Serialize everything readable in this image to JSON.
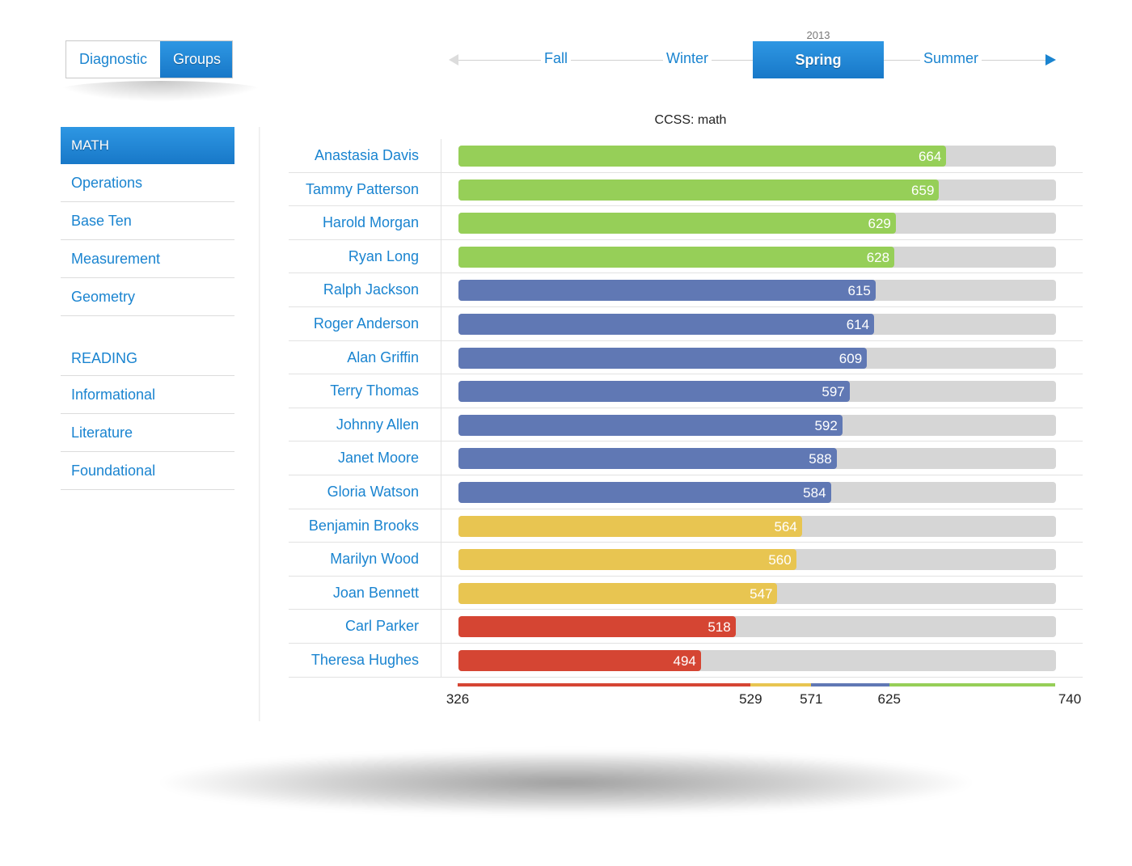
{
  "toggle": {
    "diagnostic_label": "Diagnostic",
    "groups_label": "Groups",
    "active": "Groups"
  },
  "seasons": {
    "year": "2013",
    "items": [
      "Fall",
      "Winter",
      "Spring",
      "Summer"
    ],
    "active": "Spring",
    "prev_icon": "triangle-left-icon",
    "next_icon": "triangle-right-icon"
  },
  "sidebar": {
    "math_header": "MATH",
    "math_items": [
      "Operations",
      "Base Ten",
      "Measurement",
      "Geometry"
    ],
    "reading_header": "READING",
    "reading_items": [
      "Informational",
      "Literature",
      "Foundational"
    ]
  },
  "colors": {
    "accent": "#1a84d0",
    "green": "#96cf58",
    "blue": "#6078b4",
    "yellow": "#e8c551",
    "red": "#d54533",
    "track": "#d6d6d6"
  },
  "chart_data": {
    "type": "bar",
    "orientation": "horizontal",
    "title": "CCSS: math",
    "categories": [
      "Anastasia Davis",
      "Tammy Patterson",
      "Harold Morgan",
      "Ryan Long",
      "Ralph Jackson",
      "Roger Anderson",
      "Alan Griffin",
      "Terry Thomas",
      "Johnny Allen",
      "Janet Moore",
      "Gloria Watson",
      "Benjamin Brooks",
      "Marilyn Wood",
      "Joan Bennett",
      "Carl Parker",
      "Theresa Hughes"
    ],
    "values": [
      664,
      659,
      629,
      628,
      615,
      614,
      609,
      597,
      592,
      588,
      584,
      564,
      560,
      547,
      518,
      494
    ],
    "xlim": [
      326,
      740
    ],
    "band_ticks": [
      326,
      529,
      571,
      625,
      740
    ],
    "bands": [
      {
        "from": 326,
        "to": 529,
        "color": "#d54533"
      },
      {
        "from": 529,
        "to": 571,
        "color": "#e8c551"
      },
      {
        "from": 571,
        "to": 625,
        "color": "#6078b4"
      },
      {
        "from": 625,
        "to": 740,
        "color": "#96cf58"
      }
    ]
  }
}
